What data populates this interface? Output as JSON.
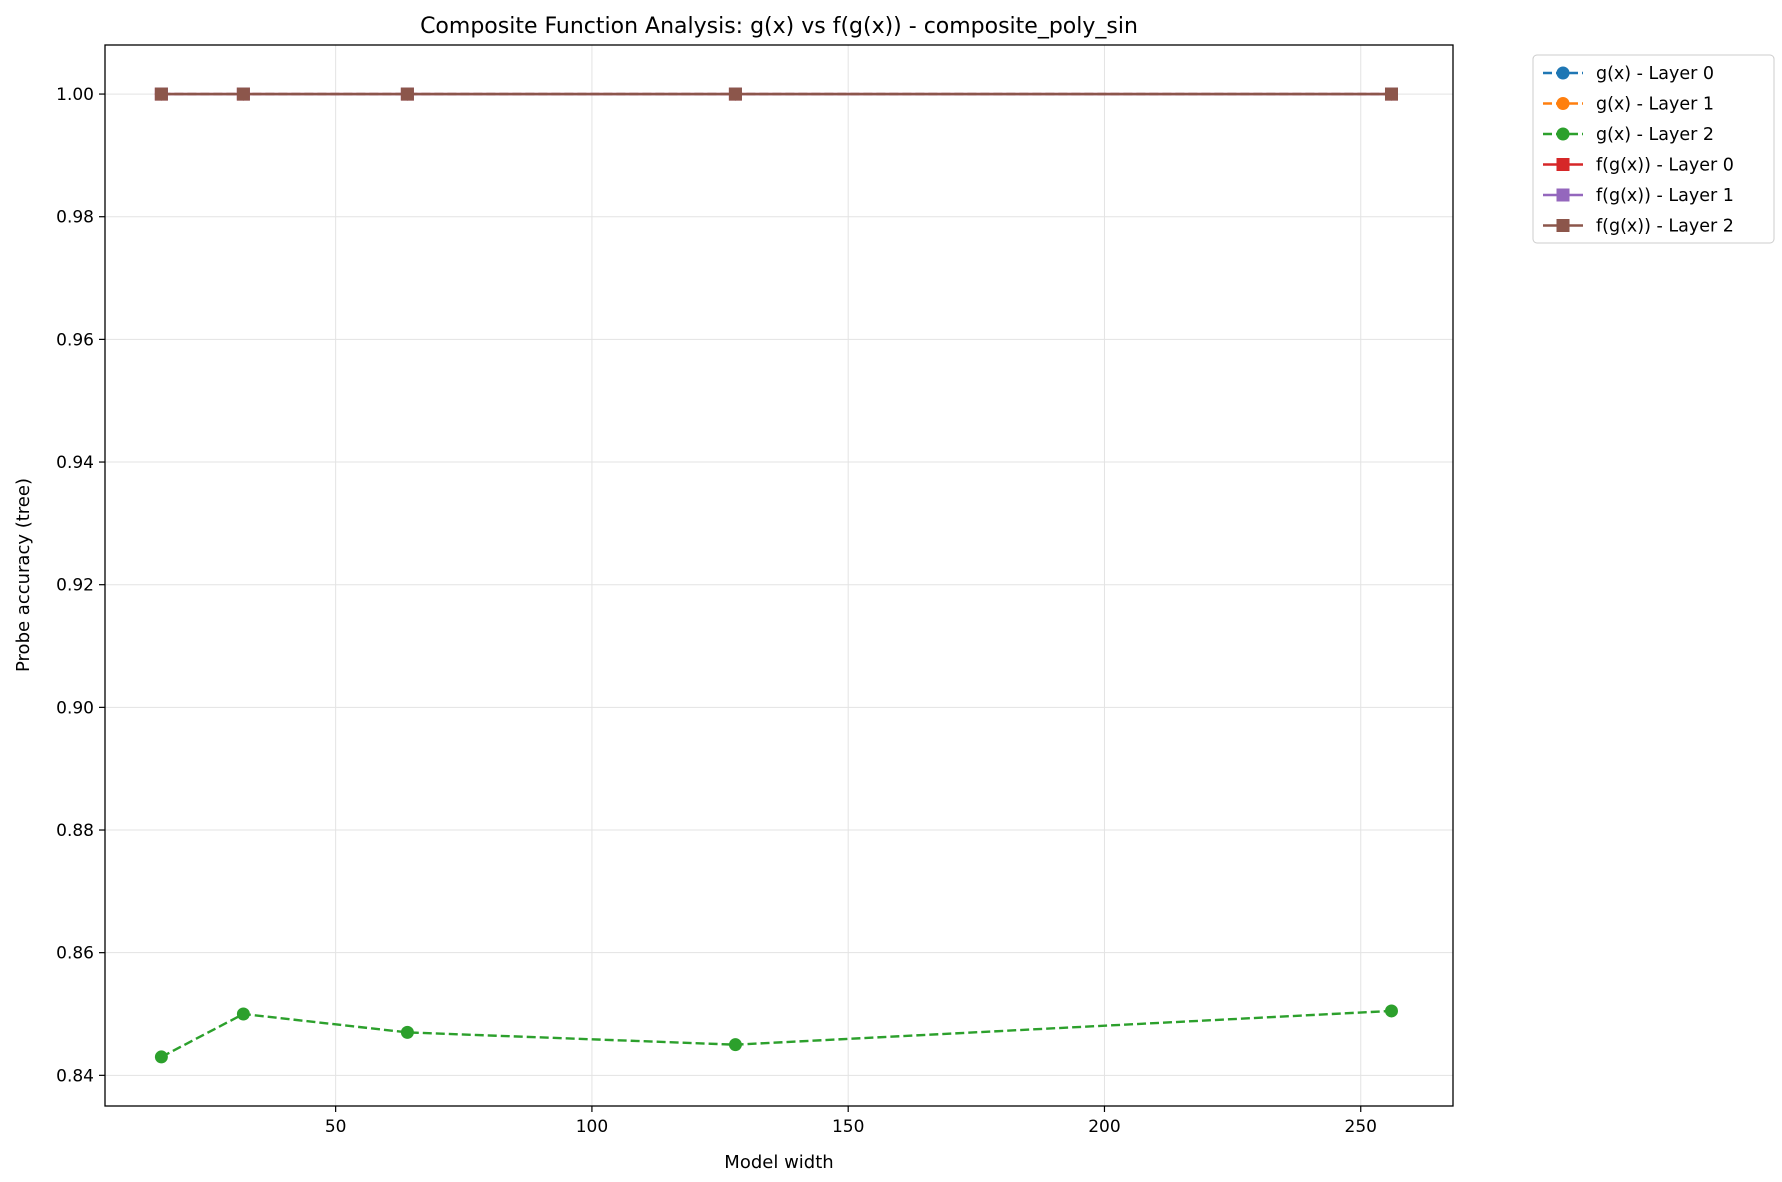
{
  "chart_data": {
    "type": "line",
    "title": "Composite Function Analysis: g(x) vs f(g(x)) - composite_poly_sin",
    "xlabel": "Model width",
    "ylabel": "Probe accuracy (tree)",
    "xlim": [
      5,
      268
    ],
    "ylim": [
      0.835,
      1.008
    ],
    "xticks": [
      50,
      100,
      150,
      200,
      250
    ],
    "yticks": [
      0.84,
      0.86,
      0.88,
      0.9,
      0.92,
      0.94,
      0.96,
      0.98,
      1.0
    ],
    "xtick_labels": [
      "50",
      "100",
      "150",
      "200",
      "250"
    ],
    "ytick_labels": [
      "0.84",
      "0.86",
      "0.88",
      "0.90",
      "0.92",
      "0.94",
      "0.96",
      "0.98",
      "1.00"
    ],
    "grid": true,
    "legend_position": "outside-top-right",
    "x": [
      16,
      32,
      64,
      128,
      256
    ],
    "series": [
      {
        "name": "g(x) - Layer 0",
        "values": [
          1.0,
          1.0,
          1.0,
          1.0,
          1.0
        ],
        "color": "#1f77b4",
        "linestyle": "dashed",
        "marker": "circle"
      },
      {
        "name": "g(x) - Layer 1",
        "values": [
          1.0,
          1.0,
          1.0,
          1.0,
          1.0
        ],
        "color": "#ff7f0e",
        "linestyle": "dashed",
        "marker": "circle"
      },
      {
        "name": "g(x) - Layer 2",
        "values": [
          0.843,
          0.85,
          0.847,
          0.845,
          0.8505
        ],
        "color": "#2ca02c",
        "linestyle": "dashed",
        "marker": "circle"
      },
      {
        "name": "f(g(x)) - Layer 0",
        "values": [
          1.0,
          1.0,
          1.0,
          1.0,
          1.0
        ],
        "color": "#d62728",
        "linestyle": "solid",
        "marker": "square"
      },
      {
        "name": "f(g(x)) - Layer 1",
        "values": [
          1.0,
          1.0,
          1.0,
          1.0,
          1.0
        ],
        "color": "#9467bd",
        "linestyle": "solid",
        "marker": "square"
      },
      {
        "name": "f(g(x)) - Layer 2",
        "values": [
          1.0,
          1.0,
          1.0,
          1.0,
          1.0
        ],
        "color": "#8c564b",
        "linestyle": "solid",
        "marker": "square"
      }
    ]
  }
}
